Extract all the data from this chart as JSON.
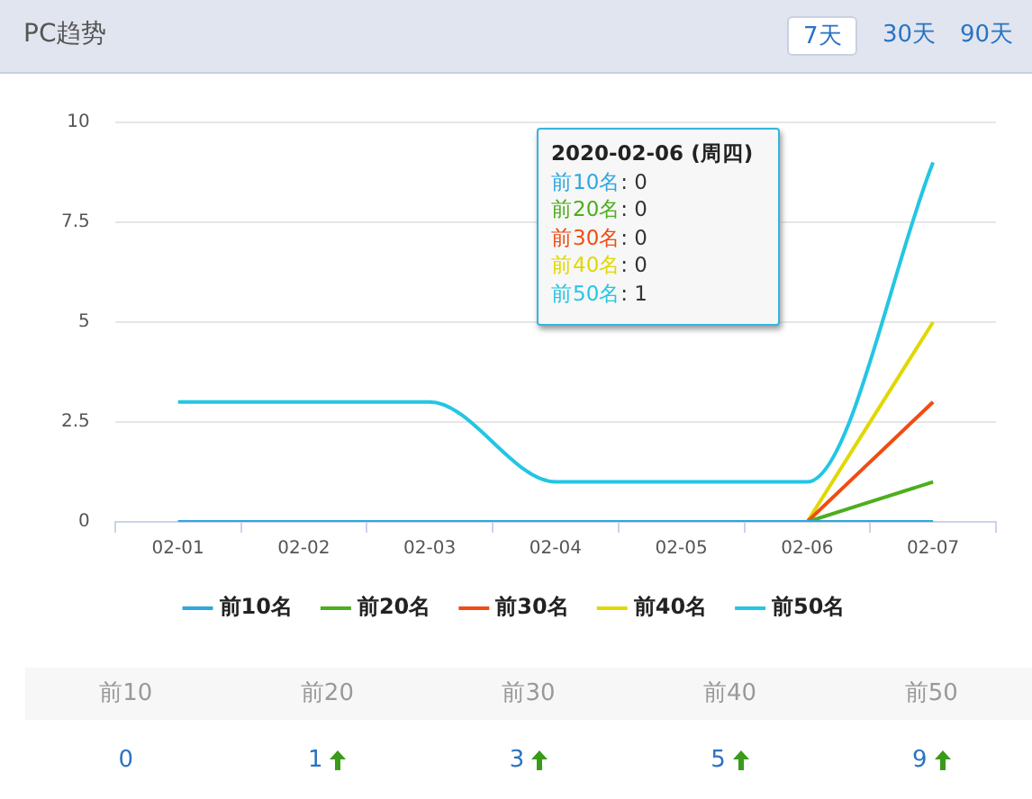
{
  "chart_data": {
    "type": "line",
    "title": "PC趋势",
    "categories": [
      "02-01",
      "02-02",
      "02-03",
      "02-04",
      "02-05",
      "02-06",
      "02-07"
    ],
    "series": [
      {
        "name": "前10名",
        "color": "#2ea7e0",
        "values": [
          0,
          0,
          0,
          0,
          0,
          0,
          0
        ]
      },
      {
        "name": "前20名",
        "color": "#4cae1c",
        "values": [
          null,
          null,
          null,
          null,
          null,
          0,
          1
        ]
      },
      {
        "name": "前30名",
        "color": "#f04c12",
        "values": [
          null,
          null,
          null,
          null,
          null,
          0,
          3
        ]
      },
      {
        "name": "前40名",
        "color": "#e0d800",
        "values": [
          null,
          null,
          null,
          null,
          null,
          0,
          5
        ]
      },
      {
        "name": "前50名",
        "color": "#23c6e3",
        "values": [
          3,
          3,
          3,
          1,
          1,
          1,
          9
        ]
      }
    ],
    "ylim": [
      0,
      10
    ],
    "yticks": [
      0,
      2.5,
      5,
      7.5,
      10
    ],
    "grid": "y",
    "legend": "bottom",
    "marker": "none",
    "line_style": "solid",
    "annotations": [
      "7天",
      "30天",
      "90天",
      "2020-02-06 (周四)",
      "前10名: 0",
      "前20名: 0",
      "前30名: 0",
      "前40名: 0",
      "前50名: 1",
      "前10",
      "前20",
      "前30",
      "前40",
      "前50",
      "0",
      "1",
      "3",
      "5",
      "9"
    ]
  }
}
